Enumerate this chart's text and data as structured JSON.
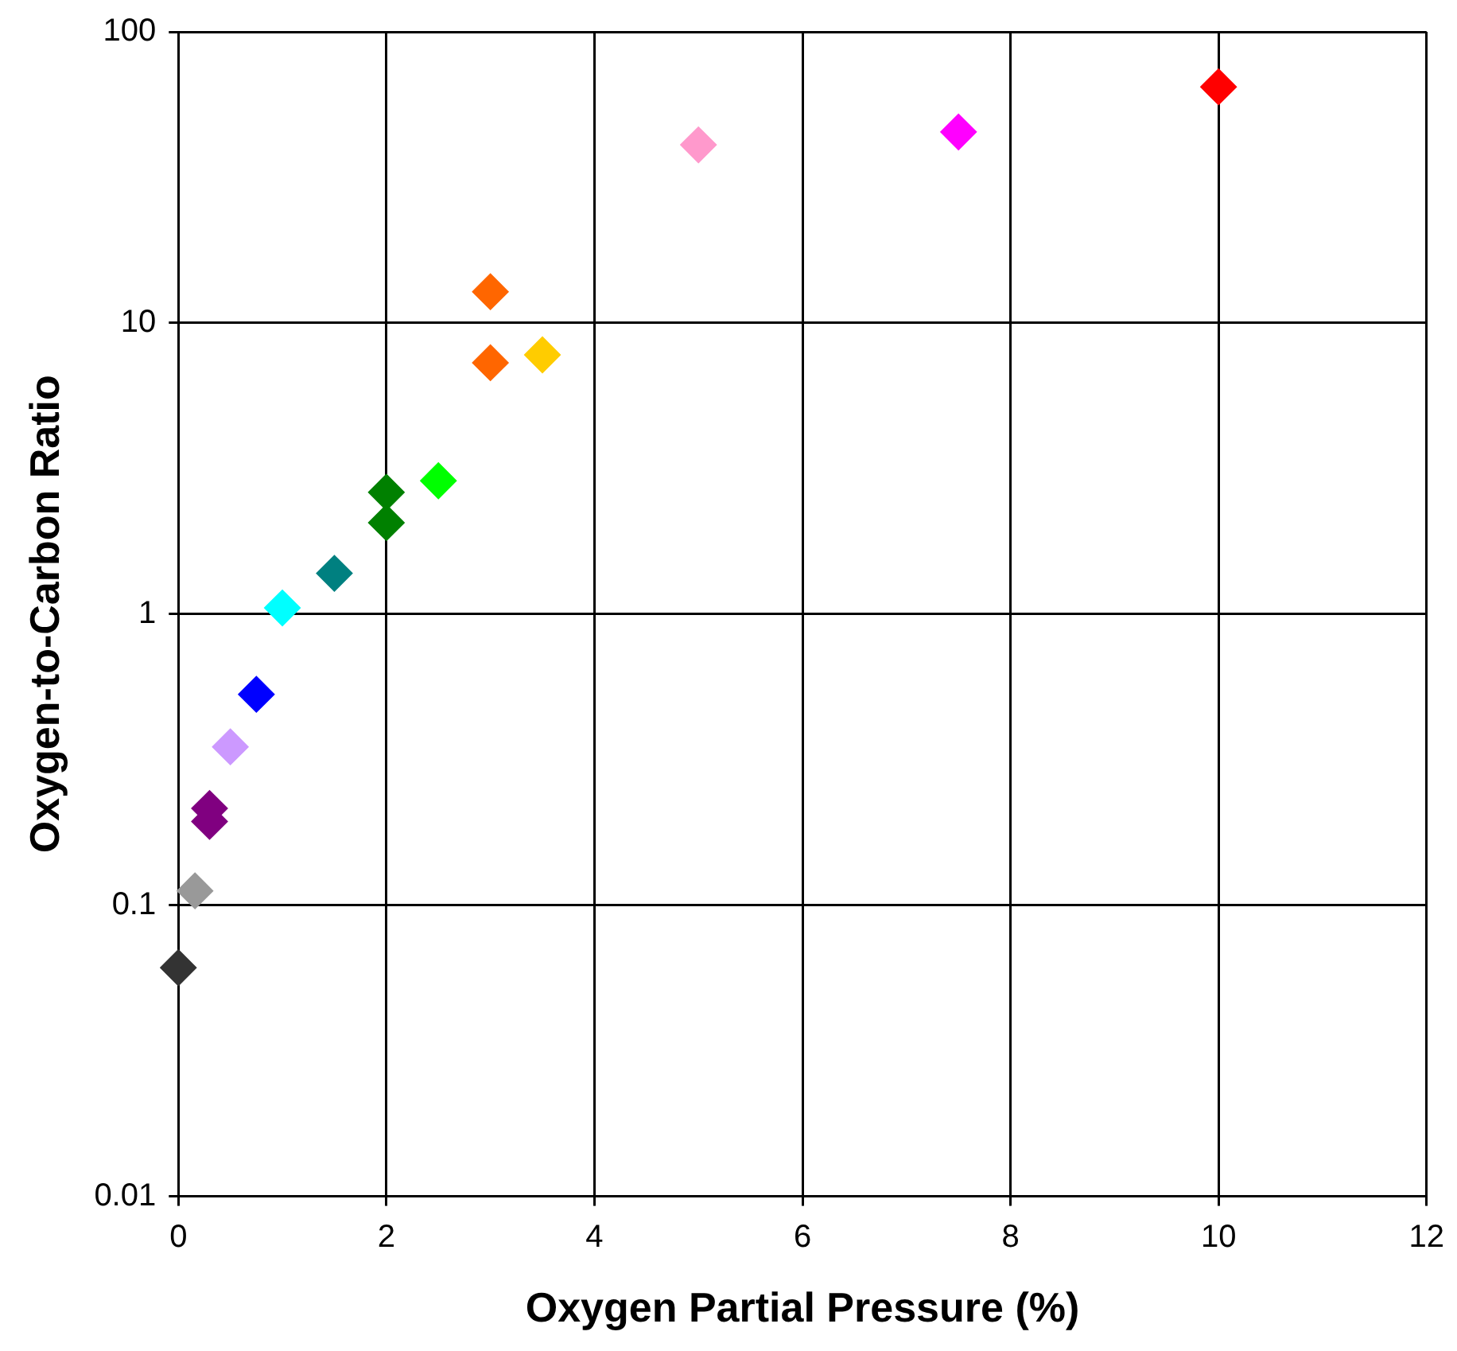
{
  "chart_data": {
    "type": "scatter",
    "xlabel": "Oxygen Partial Pressure (%)",
    "ylabel": "Oxygen-to-Carbon Ratio",
    "x": [
      0,
      0.16,
      0.3,
      0.3,
      0.5,
      0.75,
      1,
      1.5,
      2,
      2,
      2.5,
      3,
      3,
      3.5,
      5,
      7.5,
      10
    ],
    "values": [
      0.061,
      0.112,
      0.215,
      0.194,
      0.35,
      0.53,
      1.05,
      1.38,
      2.62,
      2.06,
      2.87,
      12.8,
      7.3,
      7.77,
      40.9,
      45.3,
      64.7
    ],
    "colors": [
      "#333333",
      "#999999",
      "#800080",
      "#800080",
      "#cc99ff",
      "#0000ff",
      "#00ffff",
      "#008080",
      "#008000",
      "#008000",
      "#00ff00",
      "#ff6600",
      "#ff6600",
      "#ffcc00",
      "#ff99cc",
      "#ff00ff",
      "#ff0000"
    ],
    "xlim": [
      0,
      12
    ],
    "xticks": [
      0,
      2,
      4,
      6,
      8,
      10,
      12
    ],
    "ylim": [
      0.01,
      100
    ],
    "yticks": [
      0.01,
      0.1,
      1,
      10,
      100
    ],
    "log": "y",
    "grid": true,
    "legend": false,
    "marker": "diamond"
  }
}
